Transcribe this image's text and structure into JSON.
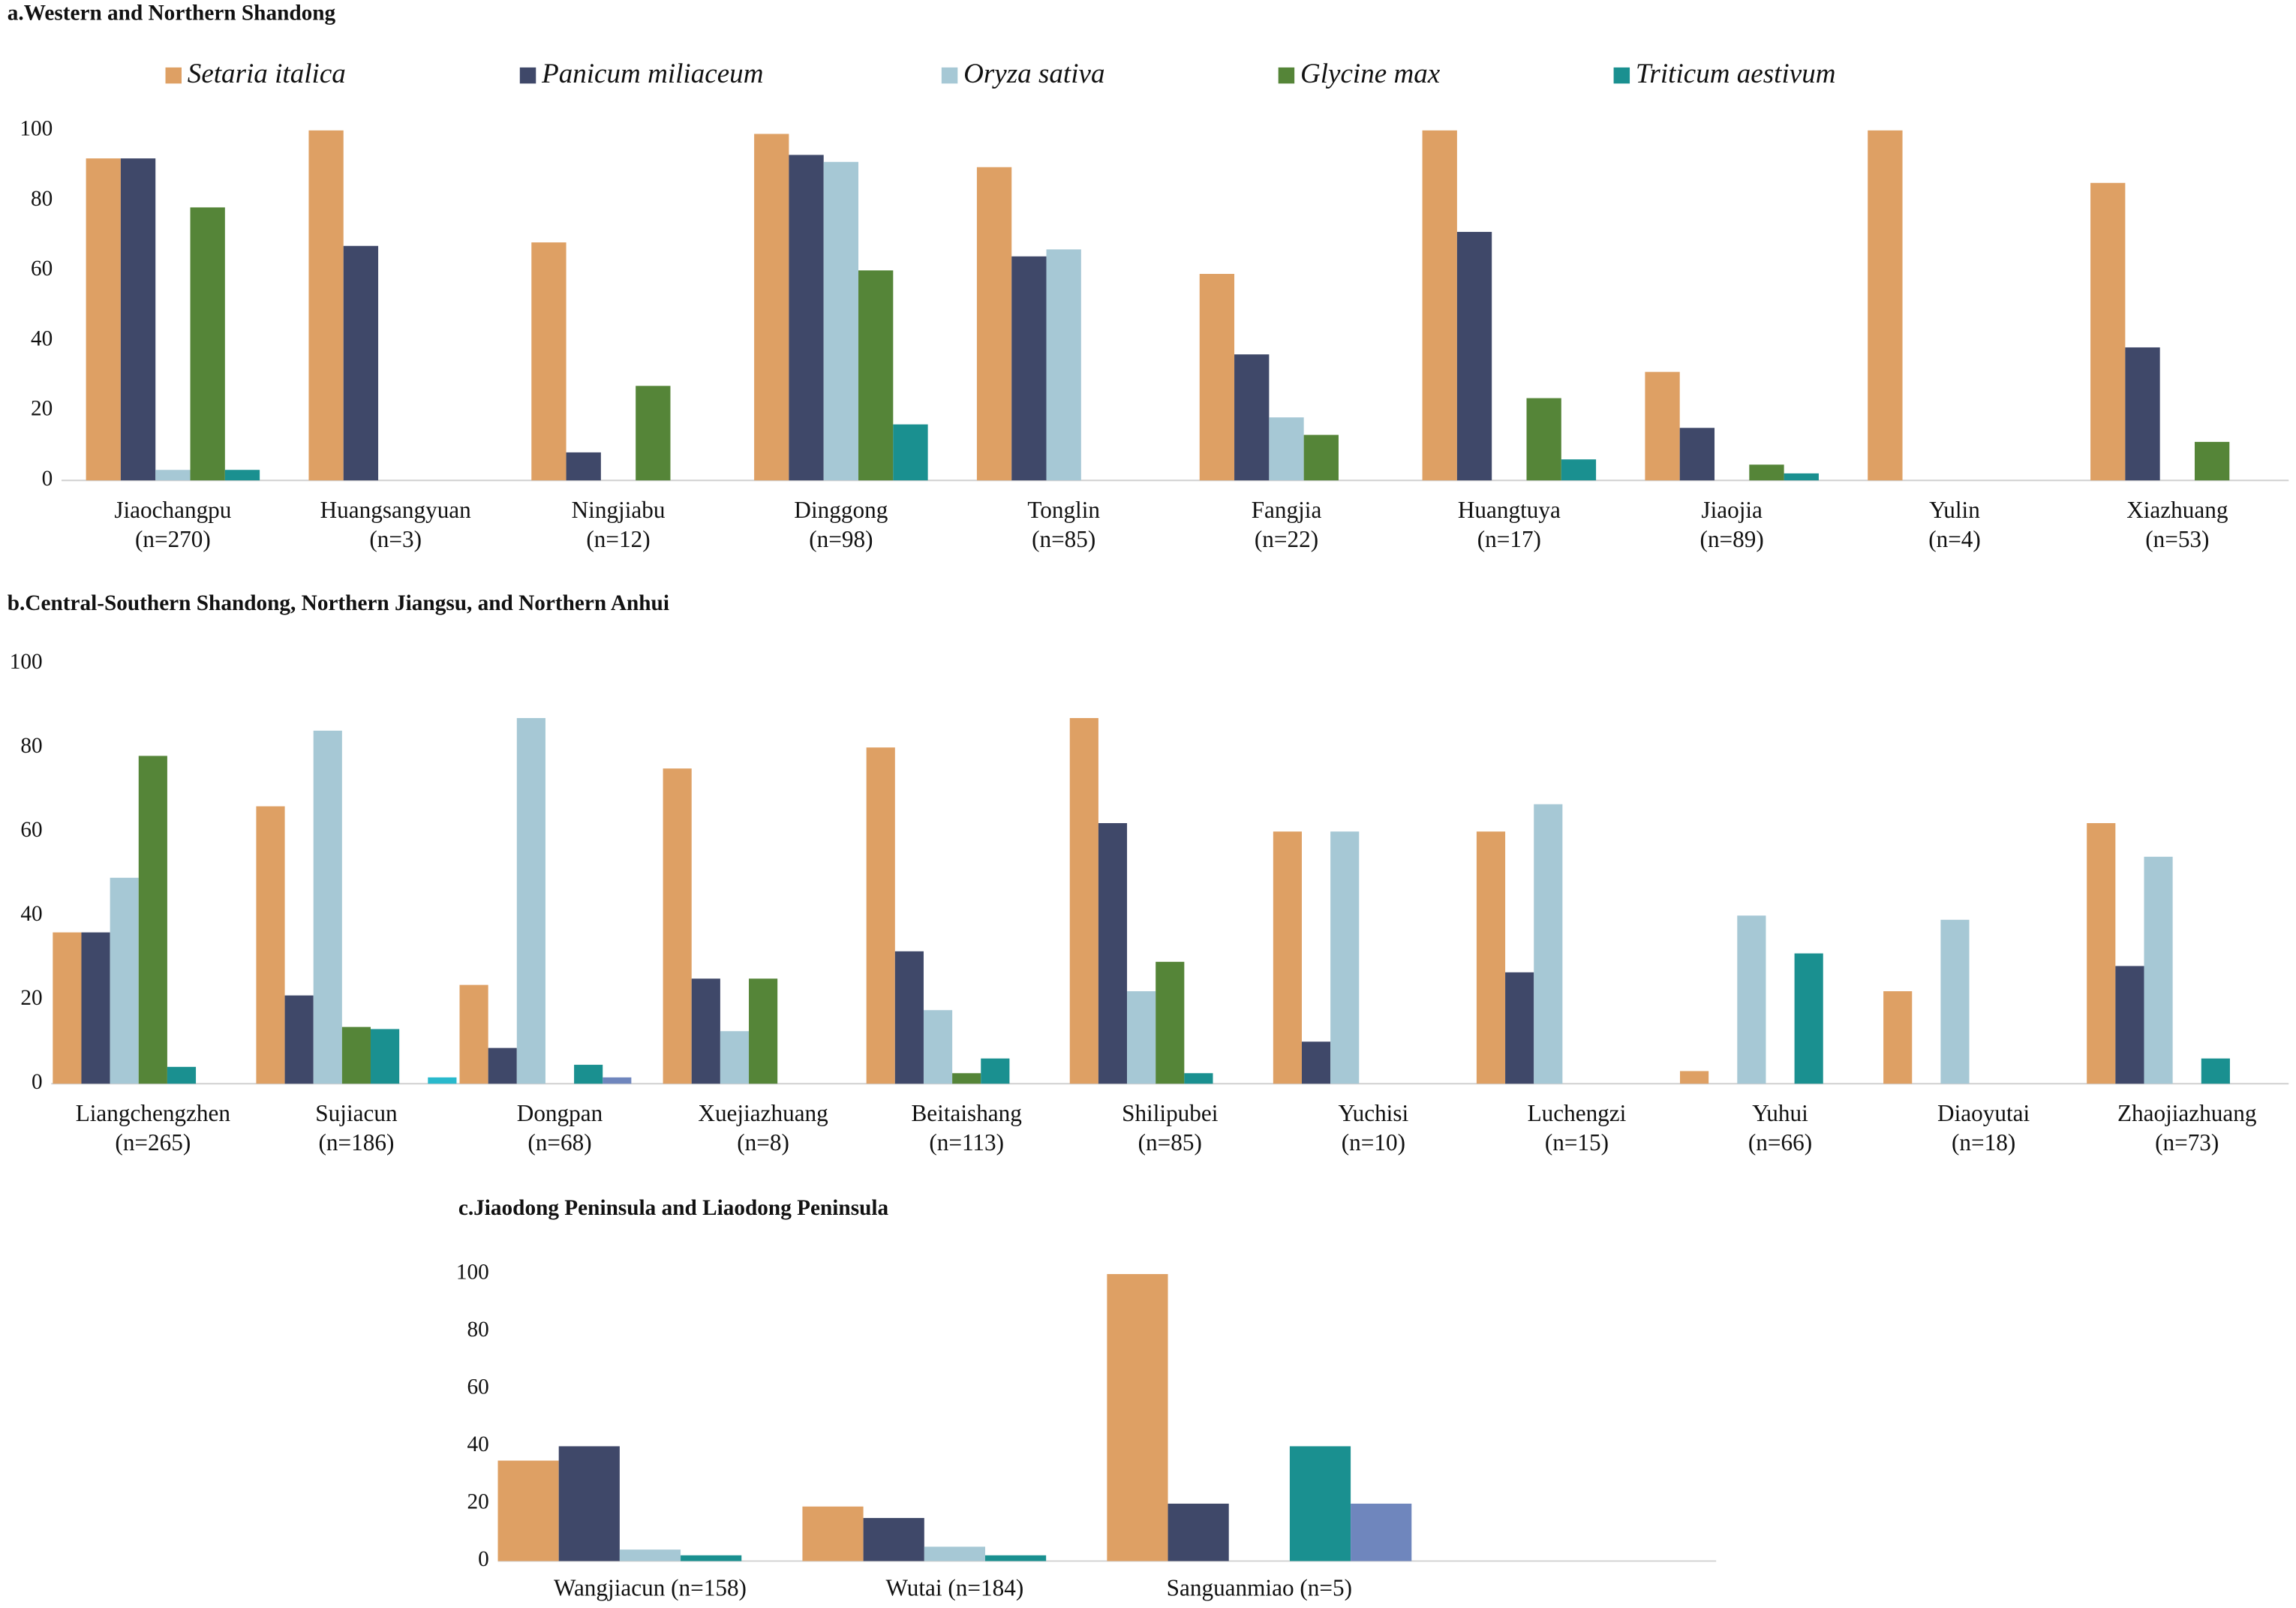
{
  "chart_data": [
    {
      "type": "bar",
      "title": "a.Western and Northern Shandong",
      "legend": "top",
      "categories": [
        "Jiaochangpu\n(n=270)",
        "Huangsangyuan\n(n=3)",
        "Ningjiabu\n(n=12)",
        "Dinggong\n(n=98)",
        "Tonglin\n(n=85)",
        "Fangjia\n(n=22)",
        "Huangtuya\n(n=17)",
        "Jiaojia\n(n=89)",
        "Yulin\n(n=4)",
        "Xiazhuang\n(n=53)"
      ],
      "series": [
        {
          "name": "Setaria italica",
          "color": "#dea064",
          "values": [
            92,
            100,
            68,
            99,
            89.5,
            59,
            100,
            31,
            100,
            85
          ]
        },
        {
          "name": "Panicum miliaceum",
          "color": "#3f4869",
          "values": [
            92,
            67,
            8,
            93,
            64,
            36,
            71,
            15,
            null,
            38
          ]
        },
        {
          "name": "Oryza sativa",
          "color": "#a6c8d5",
          "values": [
            3,
            null,
            null,
            91,
            66,
            18,
            null,
            null,
            null,
            null
          ]
        },
        {
          "name": "Glycine max",
          "color": "#558538",
          "values": [
            78,
            null,
            27,
            60,
            null,
            13,
            23.5,
            4.5,
            null,
            11
          ]
        },
        {
          "name": "Triticum aestivum",
          "color": "#1a9090",
          "values": [
            3,
            null,
            null,
            16,
            null,
            null,
            6,
            2,
            null,
            null
          ]
        }
      ],
      "ylim": [
        0,
        100
      ],
      "yticks": [
        0,
        20,
        40,
        60,
        80,
        100
      ]
    },
    {
      "type": "bar",
      "title": "b.Central-Southern Shandong, Northern Jiangsu, and Northern Anhui",
      "categories": [
        "Liangchengzhen\n(n=265)",
        "Sujiacun\n(n=186)",
        "Dongpan\n(n=68)",
        "Xuejiazhuang\n(n=8)",
        "Beitaishang\n(n=113)",
        "Shilipubei\n(n=85)",
        "Yuchisi\n(n=10)",
        "Luchengzi\n(n=15)",
        "Yuhui\n(n=66)",
        "Diaoyutai\n(n=18)",
        "Zhaojiazhuang\n(n=73)"
      ],
      "series": [
        {
          "color": "#dea064",
          "values": [
            36,
            66,
            23.5,
            75,
            80,
            87,
            60,
            60,
            3,
            22,
            62
          ]
        },
        {
          "color": "#3f4869",
          "values": [
            36,
            21,
            8.5,
            25,
            31.5,
            62,
            10,
            26.5,
            null,
            null,
            28
          ]
        },
        {
          "color": "#a6c8d5",
          "values": [
            49,
            84,
            87,
            12.5,
            17.5,
            22,
            60,
            66.5,
            40,
            39,
            54
          ]
        },
        {
          "color": "#558538",
          "values": [
            78,
            13.5,
            null,
            25,
            2.5,
            29,
            null,
            null,
            null,
            null,
            null
          ]
        },
        {
          "color": "#1a9090",
          "values": [
            4,
            13,
            4.5,
            null,
            6,
            2.5,
            null,
            null,
            31,
            null,
            6
          ]
        },
        {
          "color": "#6f86bd",
          "values": [
            null,
            null,
            1.5,
            null,
            null,
            null,
            null,
            null,
            null,
            null,
            null
          ]
        },
        {
          "color": "#29b9cc",
          "values": [
            null,
            1.5,
            null,
            null,
            null,
            null,
            null,
            null,
            null,
            null,
            null
          ]
        }
      ],
      "ylim": [
        0,
        100
      ],
      "yticks": [
        0,
        20,
        40,
        60,
        80,
        100
      ]
    },
    {
      "type": "bar",
      "title": "c.Jiaodong Peninsula and Liaodong Peninsula",
      "categories": [
        "Wangjiacun (n=158)",
        "Wutai (n=184)",
        "Sanguanmiao (n=5)",
        null
      ],
      "series": [
        {
          "color": "#dea064",
          "values": [
            35,
            19,
            100,
            null
          ]
        },
        {
          "color": "#3f4869",
          "values": [
            40,
            15,
            20,
            null
          ]
        },
        {
          "color": "#a6c8d5",
          "values": [
            4,
            5,
            null,
            null
          ]
        },
        {
          "color": "#1a9090",
          "values": [
            2,
            2,
            40,
            null
          ]
        },
        {
          "color": "#6f86bd",
          "values": [
            null,
            null,
            20,
            null
          ]
        }
      ],
      "ylim": [
        0,
        100
      ],
      "yticks": [
        0,
        20,
        40,
        60,
        80,
        100
      ]
    }
  ]
}
